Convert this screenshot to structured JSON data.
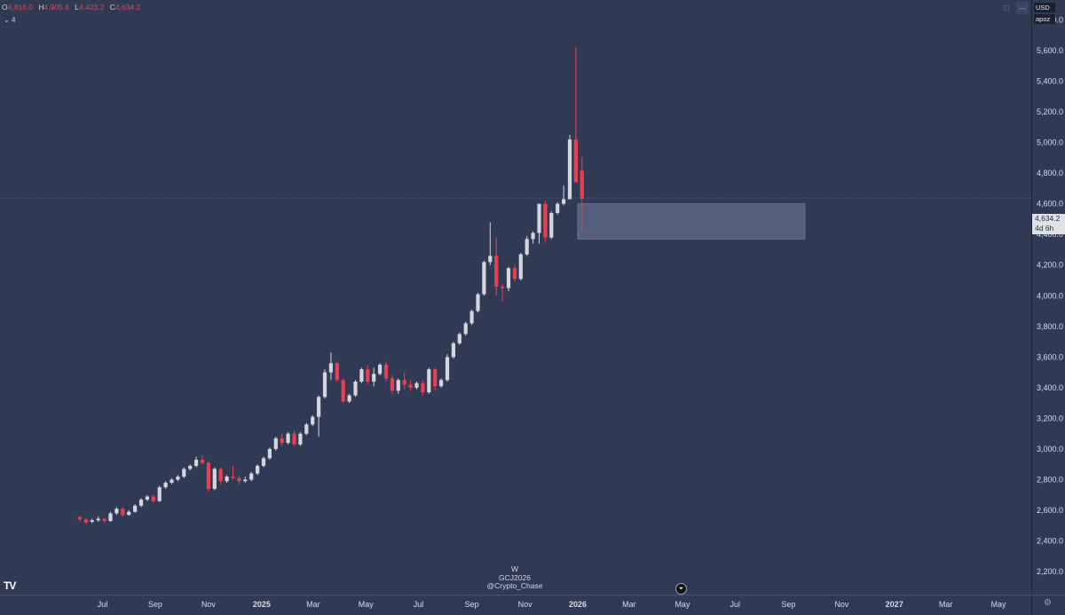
{
  "ohlc": {
    "o_label": "O",
    "o": "4,816.0",
    "h_label": "H",
    "h": "4,905.6",
    "l_label": "L",
    "l": "4,423.2",
    "c_label": "C",
    "c": "4,634.2"
  },
  "indicator_toggle": "4",
  "currency": "USD",
  "scale_button": "apoz",
  "last_price": {
    "value": "4,634.2",
    "countdown": "4d 6h"
  },
  "watermark": {
    "interval": "W",
    "symbol": "GCJ2026",
    "author": "@Crypto_Chase"
  },
  "logo_text": "TV",
  "colors": {
    "background": "#313a55",
    "up": "#d4d6dd",
    "down": "#e8404f",
    "zone": "#5c6684"
  },
  "chart_data": {
    "type": "candlestick",
    "interval": "weekly",
    "ylim": [
      2050,
      5930
    ],
    "y_ticks": [
      2200,
      2400,
      2600,
      2800,
      3000,
      3200,
      3400,
      3600,
      3800,
      4000,
      4200,
      4400,
      4600,
      4800,
      5000,
      5200,
      5400,
      5600,
      5800
    ],
    "y_tick_labels": [
      "2,200.0",
      "2,400.0",
      "2,600.0",
      "2,800.0",
      "3,000.0",
      "3,200.0",
      "3,400.0",
      "3,600.0",
      "3,800.0",
      "4,000.0",
      "4,200.0",
      "4,400.0",
      "4,600.0",
      "4,800.0",
      "5,000.0",
      "5,200.0",
      "5,400.0",
      "5,600.0",
      "5,800.0"
    ],
    "x_ticks": [
      {
        "label": "Jul",
        "week": 3.7,
        "bold": false
      },
      {
        "label": "Sep",
        "week": 12.3,
        "bold": false
      },
      {
        "label": "Nov",
        "week": 21.0,
        "bold": false
      },
      {
        "label": "2025",
        "week": 29.7,
        "bold": true
      },
      {
        "label": "Mar",
        "week": 38.1,
        "bold": false
      },
      {
        "label": "May",
        "week": 46.7,
        "bold": false
      },
      {
        "label": "Jul",
        "week": 55.3,
        "bold": false
      },
      {
        "label": "Sep",
        "week": 64.0,
        "bold": false
      },
      {
        "label": "Nov",
        "week": 72.7,
        "bold": false
      },
      {
        "label": "2026",
        "week": 81.3,
        "bold": true
      },
      {
        "label": "Mar",
        "week": 89.7,
        "bold": false
      },
      {
        "label": "May",
        "week": 98.4,
        "bold": false
      },
      {
        "label": "Jul",
        "week": 107.0,
        "bold": false
      },
      {
        "label": "Sep",
        "week": 115.7,
        "bold": false
      },
      {
        "label": "Nov",
        "week": 124.4,
        "bold": false
      },
      {
        "label": "2027",
        "week": 133.0,
        "bold": true
      },
      {
        "label": "Mar",
        "week": 141.4,
        "bold": false
      },
      {
        "label": "May",
        "week": 150.0,
        "bold": false
      }
    ],
    "candles": [
      [
        2555,
        2565,
        2525,
        2540
      ],
      [
        2540,
        2550,
        2510,
        2520
      ],
      [
        2525,
        2545,
        2515,
        2535
      ],
      [
        2535,
        2560,
        2525,
        2545
      ],
      [
        2545,
        2550,
        2520,
        2530
      ],
      [
        2530,
        2590,
        2525,
        2580
      ],
      [
        2580,
        2620,
        2570,
        2610
      ],
      [
        2610,
        2620,
        2560,
        2570
      ],
      [
        2570,
        2600,
        2565,
        2590
      ],
      [
        2590,
        2640,
        2585,
        2630
      ],
      [
        2630,
        2680,
        2620,
        2670
      ],
      [
        2670,
        2700,
        2660,
        2690
      ],
      [
        2690,
        2700,
        2650,
        2660
      ],
      [
        2660,
        2760,
        2655,
        2750
      ],
      [
        2750,
        2790,
        2740,
        2780
      ],
      [
        2780,
        2810,
        2770,
        2800
      ],
      [
        2800,
        2830,
        2790,
        2820
      ],
      [
        2820,
        2880,
        2810,
        2870
      ],
      [
        2870,
        2900,
        2860,
        2890
      ],
      [
        2890,
        2950,
        2880,
        2930
      ],
      [
        2930,
        2960,
        2900,
        2910
      ],
      [
        2910,
        2920,
        2720,
        2740
      ],
      [
        2740,
        2880,
        2730,
        2870
      ],
      [
        2870,
        2880,
        2770,
        2790
      ],
      [
        2790,
        2830,
        2780,
        2820
      ],
      [
        2820,
        2890,
        2800,
        2810
      ],
      [
        2810,
        2830,
        2770,
        2790
      ],
      [
        2790,
        2820,
        2780,
        2800
      ],
      [
        2800,
        2850,
        2790,
        2840
      ],
      [
        2840,
        2900,
        2830,
        2890
      ],
      [
        2890,
        2950,
        2880,
        2940
      ],
      [
        2940,
        3010,
        2930,
        3000
      ],
      [
        3000,
        3080,
        2990,
        3070
      ],
      [
        3070,
        3100,
        3020,
        3040
      ],
      [
        3040,
        3110,
        3030,
        3100
      ],
      [
        3100,
        3120,
        3020,
        3030
      ],
      [
        3030,
        3110,
        3020,
        3100
      ],
      [
        3100,
        3170,
        3090,
        3160
      ],
      [
        3160,
        3220,
        3150,
        3210
      ],
      [
        3210,
        3350,
        3080,
        3340
      ],
      [
        3340,
        3520,
        3330,
        3500
      ],
      [
        3500,
        3630,
        3450,
        3560
      ],
      [
        3560,
        3570,
        3440,
        3450
      ],
      [
        3450,
        3460,
        3300,
        3310
      ],
      [
        3310,
        3360,
        3300,
        3350
      ],
      [
        3350,
        3450,
        3340,
        3440
      ],
      [
        3440,
        3530,
        3430,
        3520
      ],
      [
        3520,
        3550,
        3420,
        3440
      ],
      [
        3440,
        3530,
        3410,
        3490
      ],
      [
        3490,
        3560,
        3480,
        3550
      ],
      [
        3550,
        3570,
        3440,
        3460
      ],
      [
        3460,
        3480,
        3360,
        3380
      ],
      [
        3380,
        3460,
        3360,
        3450
      ],
      [
        3450,
        3500,
        3390,
        3420
      ],
      [
        3420,
        3450,
        3380,
        3400
      ],
      [
        3400,
        3440,
        3390,
        3430
      ],
      [
        3430,
        3450,
        3350,
        3370
      ],
      [
        3370,
        3530,
        3360,
        3520
      ],
      [
        3520,
        3530,
        3380,
        3410
      ],
      [
        3410,
        3460,
        3400,
        3450
      ],
      [
        3450,
        3620,
        3440,
        3600
      ],
      [
        3600,
        3700,
        3590,
        3690
      ],
      [
        3690,
        3760,
        3680,
        3750
      ],
      [
        3750,
        3830,
        3740,
        3820
      ],
      [
        3820,
        3910,
        3810,
        3900
      ],
      [
        3900,
        4020,
        3890,
        4010
      ],
      [
        4010,
        4230,
        4000,
        4220
      ],
      [
        4220,
        4480,
        4200,
        4260
      ],
      [
        4260,
        4380,
        4000,
        4060
      ],
      [
        4060,
        4080,
        3960,
        4050
      ],
      [
        4050,
        4190,
        4030,
        4180
      ],
      [
        4180,
        4200,
        4090,
        4110
      ],
      [
        4110,
        4280,
        4100,
        4270
      ],
      [
        4270,
        4390,
        4260,
        4370
      ],
      [
        4370,
        4420,
        4340,
        4410
      ],
      [
        4410,
        4600,
        4340,
        4600
      ],
      [
        4600,
        4620,
        4350,
        4380
      ],
      [
        4380,
        4550,
        4370,
        4540
      ],
      [
        4540,
        4610,
        4530,
        4600
      ],
      [
        4600,
        4720,
        4590,
        4630
      ],
      [
        4630,
        5050,
        4630,
        5020
      ],
      [
        5020,
        5620,
        4760,
        4740
      ],
      [
        4816,
        4905.6,
        4423.2,
        4634.2
      ]
    ],
    "zone": {
      "week_start": 81.3,
      "week_end": 118.4,
      "top": 4600,
      "bottom": 4370
    },
    "last_price_line": 4634.2
  }
}
